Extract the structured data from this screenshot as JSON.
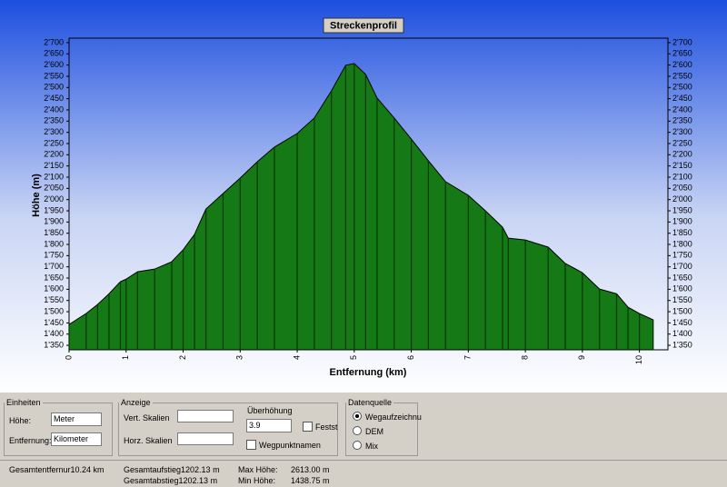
{
  "chart_data": {
    "type": "area",
    "title": "Streckenprofil",
    "x_label": "Entfernung (km)",
    "y_label": "Höhe (m)",
    "color": "#157a15",
    "x": [
      0,
      0.3,
      0.5,
      0.7,
      0.9,
      1.0,
      1.2,
      1.5,
      1.8,
      2.0,
      2.2,
      2.4,
      2.7,
      3.0,
      3.3,
      3.6,
      4.0,
      4.3,
      4.6,
      4.85,
      5.0,
      5.2,
      5.4,
      5.7,
      6.0,
      6.3,
      6.6,
      7.0,
      7.3,
      7.6,
      7.7,
      8.0,
      8.4,
      8.7,
      9.0,
      9.3,
      9.6,
      9.8,
      10.0,
      10.24
    ],
    "values": [
      1443,
      1492,
      1532,
      1580,
      1634,
      1645,
      1678,
      1690,
      1723,
      1776,
      1845,
      1958,
      2027,
      2096,
      2169,
      2234,
      2295,
      2364,
      2485,
      2599,
      2607,
      2558,
      2453,
      2364,
      2270,
      2173,
      2080,
      2019,
      1950,
      1877,
      1828,
      1820,
      1788,
      1715,
      1674,
      1601,
      1580,
      1520,
      1492,
      1464
    ],
    "xlim": [
      0,
      10.5
    ],
    "xticks": [
      0,
      1,
      2,
      3,
      4,
      5,
      6,
      7,
      8,
      9,
      10
    ],
    "ylim": [
      1330,
      2720
    ],
    "yticks": [
      {
        "value": 1350,
        "label": "1'350"
      },
      {
        "value": 1400,
        "label": "1'400"
      },
      {
        "value": 1450,
        "label": "1'450"
      },
      {
        "value": 1500,
        "label": "1'500"
      },
      {
        "value": 1550,
        "label": "1'550"
      },
      {
        "value": 1600,
        "label": "1'600"
      },
      {
        "value": 1650,
        "label": "1'650"
      },
      {
        "value": 1700,
        "label": "1'700"
      },
      {
        "value": 1750,
        "label": "1'750"
      },
      {
        "value": 1800,
        "label": "1'800"
      },
      {
        "value": 1850,
        "label": "1'850"
      },
      {
        "value": 1900,
        "label": "1'900"
      },
      {
        "value": 1950,
        "label": "1'950"
      },
      {
        "value": 2000,
        "label": "2'000"
      },
      {
        "value": 2050,
        "label": "2'050"
      },
      {
        "value": 2100,
        "label": "2'100"
      },
      {
        "value": 2150,
        "label": "2'150"
      },
      {
        "value": 2200,
        "label": "2'200"
      },
      {
        "value": 2250,
        "label": "2'250"
      },
      {
        "value": 2300,
        "label": "2'300"
      },
      {
        "value": 2350,
        "label": "2'350"
      },
      {
        "value": 2400,
        "label": "2'400"
      },
      {
        "value": 2450,
        "label": "2'450"
      },
      {
        "value": 2500,
        "label": "2'500"
      },
      {
        "value": 2550,
        "label": "2'550"
      },
      {
        "value": 2600,
        "label": "2'600"
      },
      {
        "value": 2650,
        "label": "2'650"
      },
      {
        "value": 2700,
        "label": "2'700"
      }
    ]
  },
  "panel": {
    "einheiten": {
      "title": "Einheiten",
      "hoehe_label": "Höhe:",
      "hoehe_value": "Meter",
      "entfernung_label": "Entfernung:",
      "entfernung_value": "Kilometer"
    },
    "anzeige": {
      "title": "Anzeige",
      "vert_label": "Vert. Skalien",
      "horz_label": "Horz. Skalien",
      "ueberhoehung_label": "Überhöhung",
      "ueberhoehung_value": "3.9",
      "festst_label": "Festst",
      "wegpunkt_label": "Wegpunktnamen"
    },
    "datenquelle": {
      "title": "Datenquelle",
      "options": [
        "Wegaufzeichnu",
        "DEM",
        "Mix"
      ]
    }
  },
  "status": {
    "entfernung": "Gesamtentfernur10.24 km",
    "aufstieg": "Gesamtaufstieg1202.13 m",
    "abstieg": "Gesamtabstieg1202.13 m",
    "max_label": "Max Höhe:",
    "max_value": "2613.00 m",
    "min_label": "Min Höhe:",
    "min_value": "1438.75 m"
  }
}
